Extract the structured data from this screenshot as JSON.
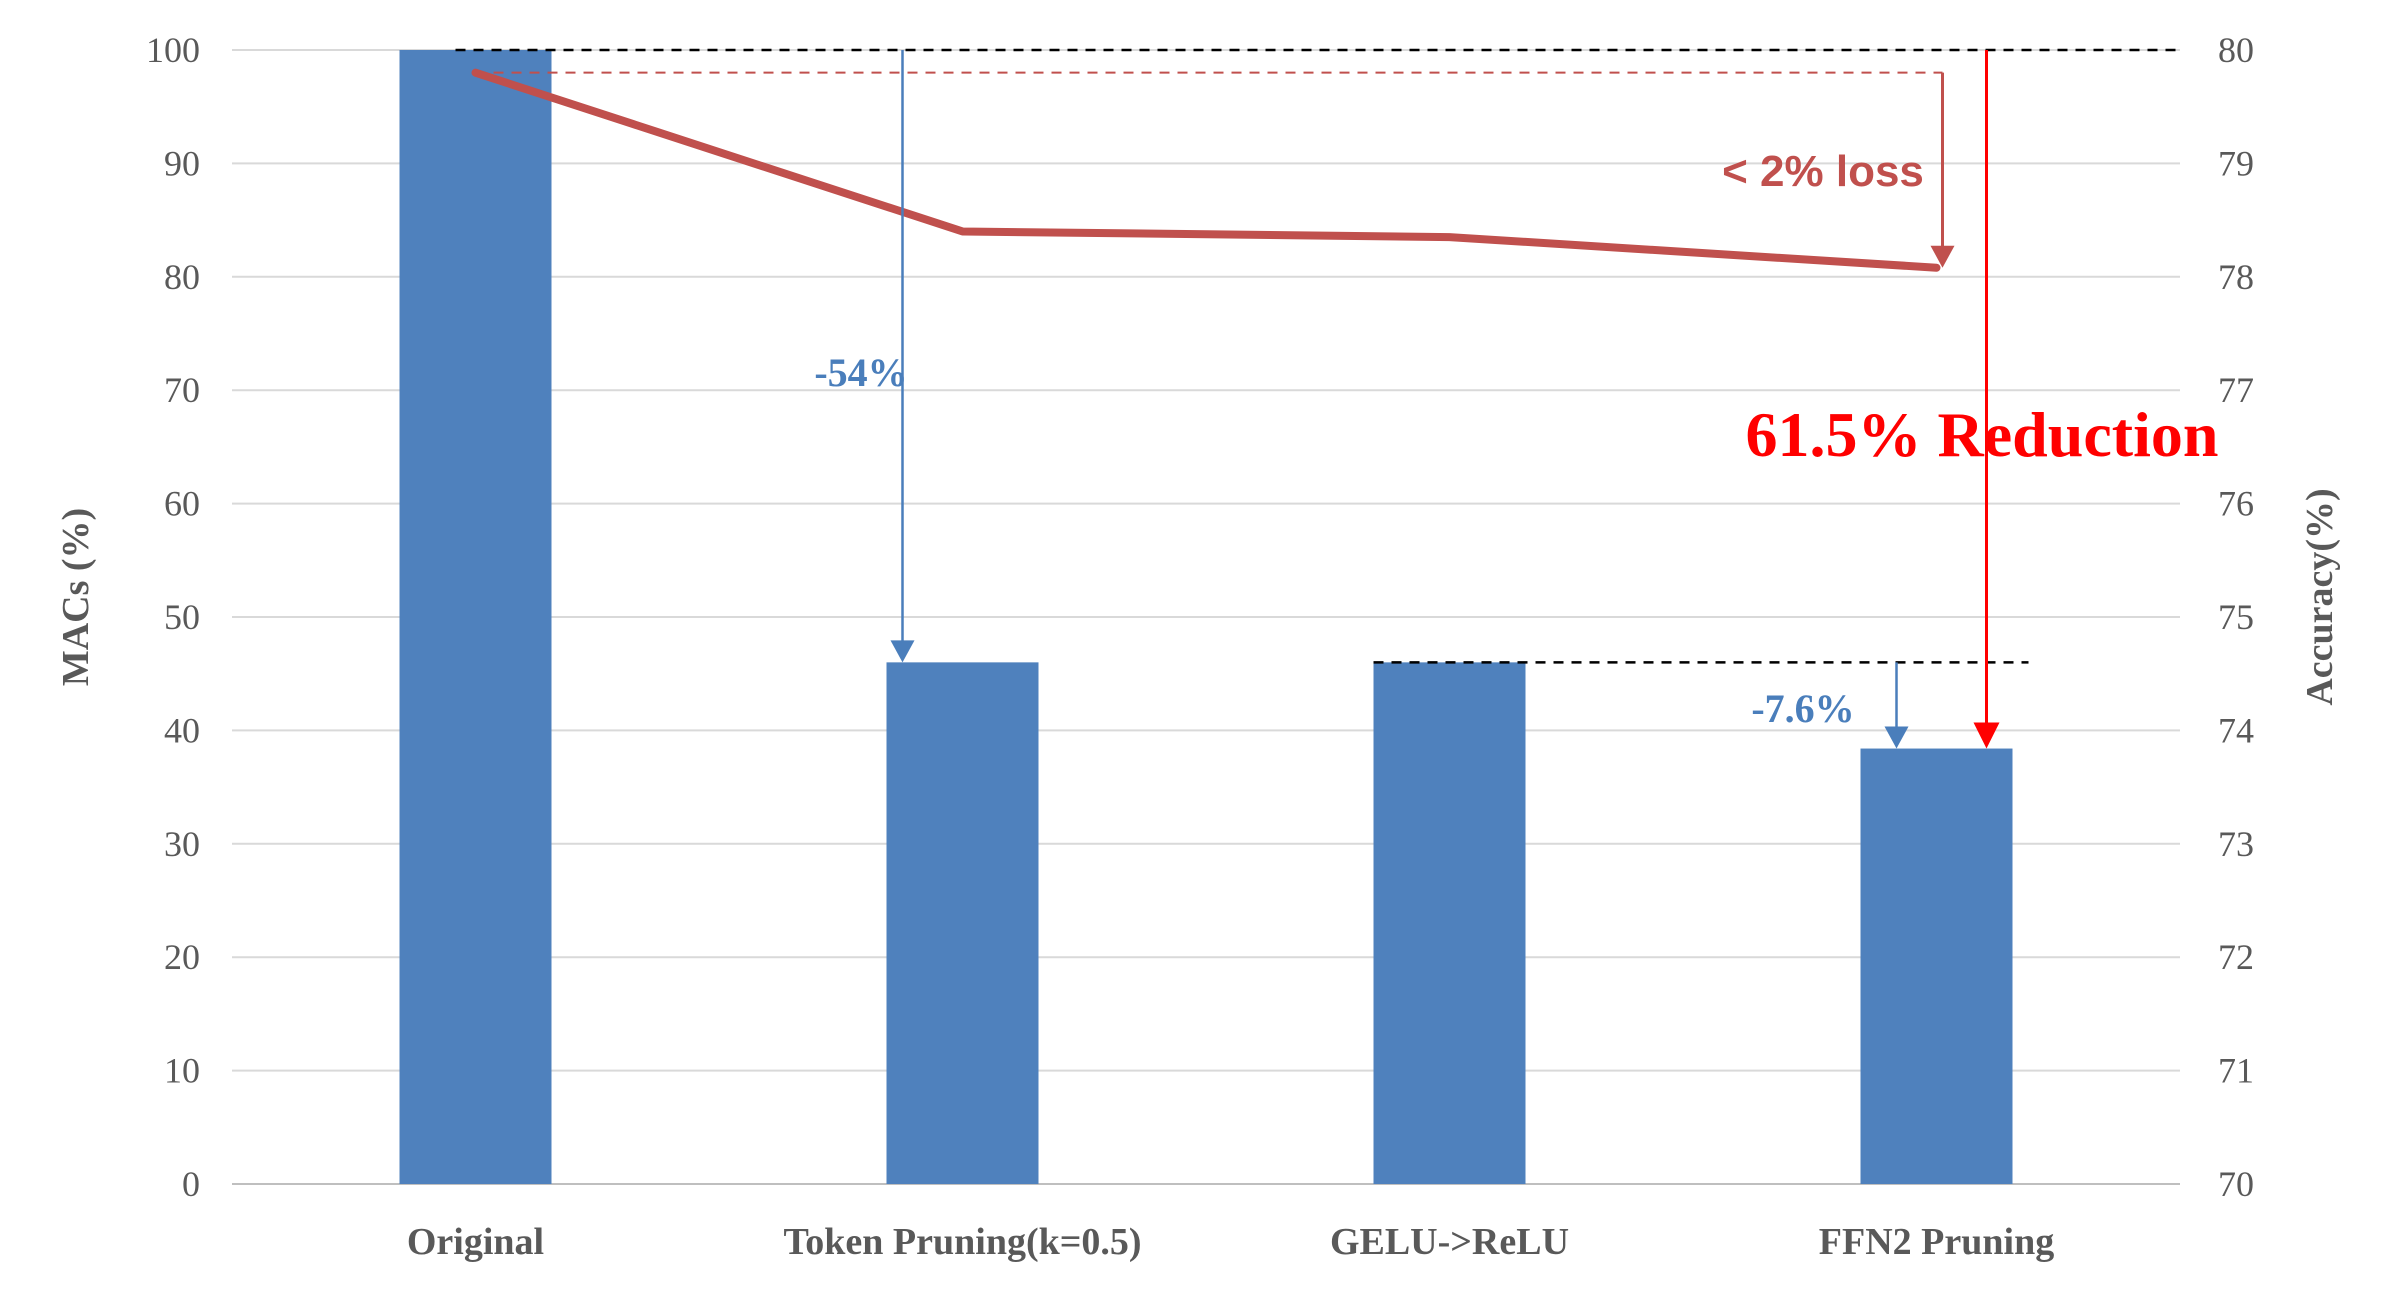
{
  "chart_data": {
    "type": "bar",
    "categories": [
      "Original",
      "Token Pruning(k=0.5)",
      "GELU->ReLU",
      "FFN2 Pruning"
    ],
    "series": [
      {
        "name": "",
        "type": "bar",
        "axis": "left",
        "values": [
          100,
          46,
          46,
          38.4
        ]
      },
      {
        "name": "",
        "type": "line",
        "axis": "right",
        "values": [
          79.8,
          78.4,
          78.35,
          78.08
        ]
      }
    ],
    "title": "",
    "ylabel": "MACs (%)",
    "y2label": "Accuracy(%)",
    "ylim": [
      0,
      100
    ],
    "y2lim": [
      70,
      80
    ],
    "yticks": [
      "0",
      "10",
      "20",
      "30",
      "40",
      "50",
      "60",
      "70",
      "80",
      "90",
      "100"
    ],
    "y2ticks": [
      "70",
      "71",
      "72",
      "73",
      "74",
      "75",
      "76",
      "77",
      "78",
      "79",
      "80"
    ],
    "grid": true,
    "legend": "none",
    "annotations": {
      "token_reduction": "-54%",
      "ffn2_reduction": "-7.6%",
      "accuracy_loss": "< 2% loss",
      "total_reduction": "61.5% Reduction"
    },
    "colors": {
      "bar": "#4F81BD",
      "line": "#C0504D",
      "blue_arrow": "#4A7EBB",
      "red_arrow": "#FF0000",
      "grid": "#D9D9D9"
    }
  }
}
